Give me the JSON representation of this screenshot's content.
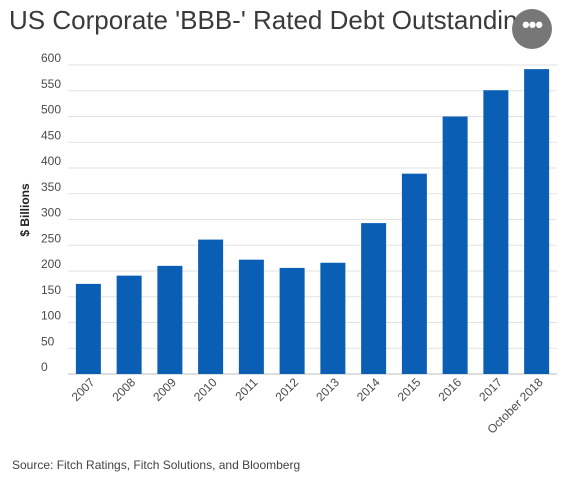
{
  "title": "US Corporate 'BBB-' Rated Debt Outstanding",
  "more_button_icon": "more-horizontal-icon",
  "more_button_glyph": "•••",
  "source": "Source:  Fitch Ratings, Fitch Solutions, and Bloomberg",
  "chart_data": {
    "type": "bar",
    "ylabel": "$ Billions",
    "xlabel": "",
    "ylim": [
      0,
      600
    ],
    "yticks": [
      0,
      50,
      100,
      150,
      200,
      250,
      300,
      350,
      400,
      450,
      500,
      550,
      600
    ],
    "grid": true,
    "bar_color": "#0a5fb4",
    "categories": [
      "2007",
      "2008",
      "2009",
      "2010",
      "2011",
      "2012",
      "2013",
      "2014",
      "2015",
      "2016",
      "2017",
      "October 2018"
    ],
    "values": [
      175,
      191,
      210,
      261,
      222,
      206,
      216,
      293,
      389,
      500,
      551,
      592
    ]
  }
}
